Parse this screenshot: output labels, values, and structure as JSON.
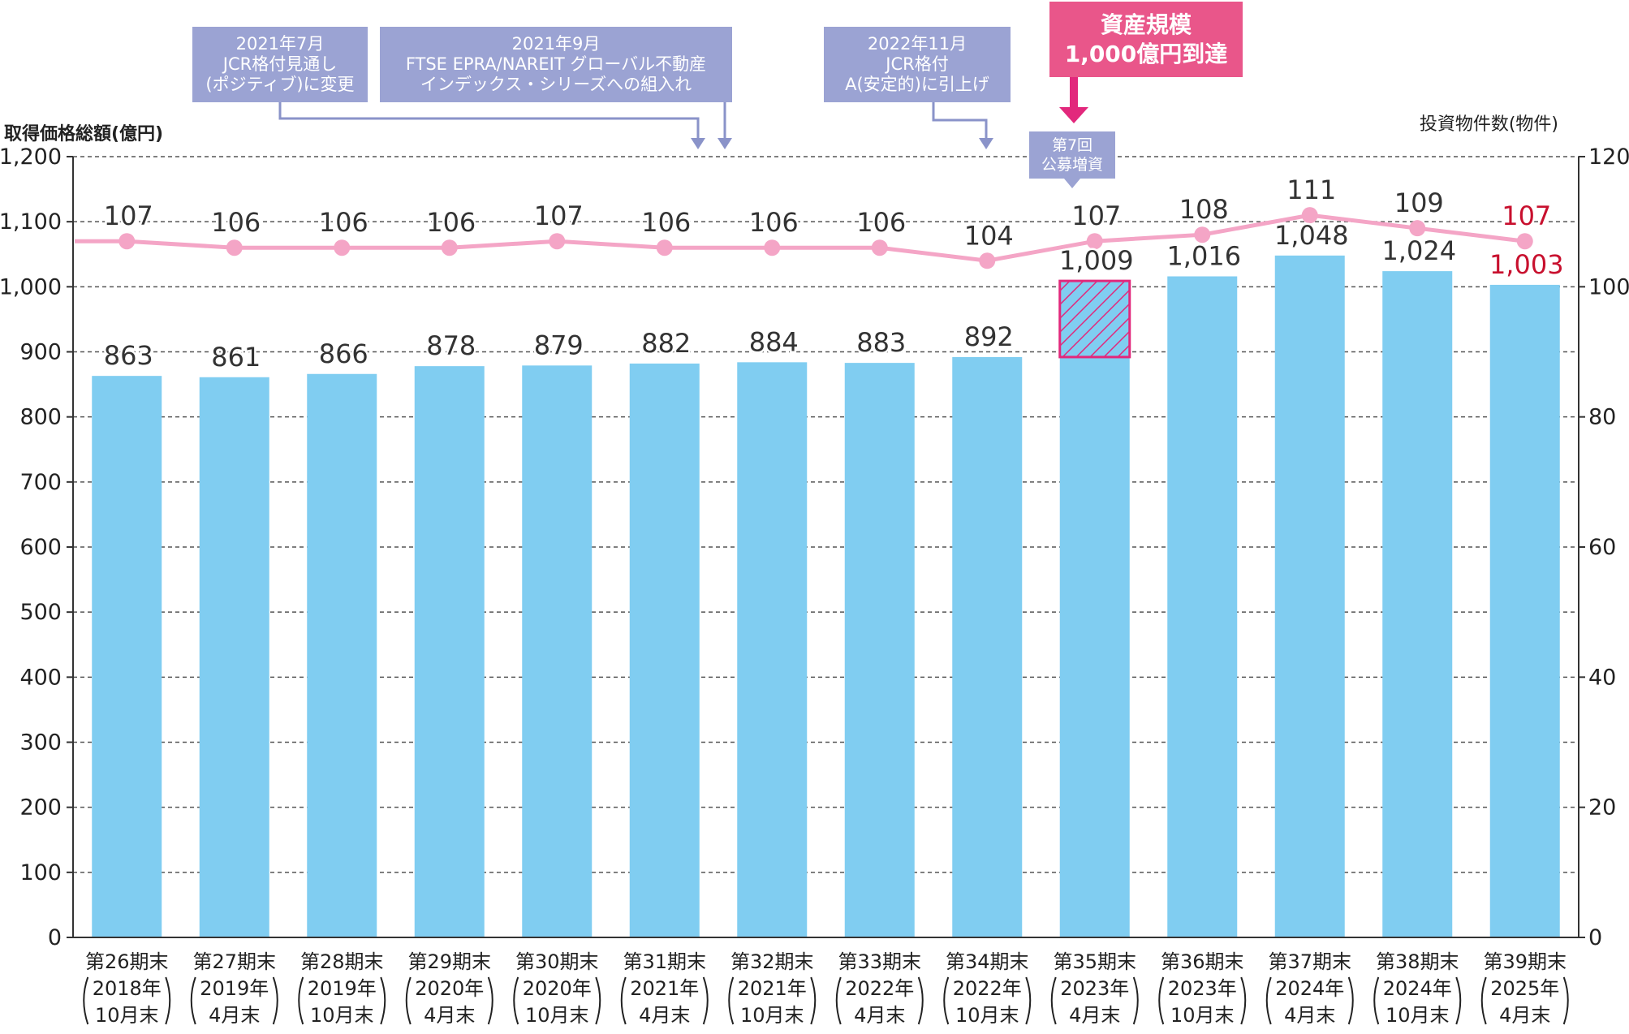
{
  "chart_data": {
    "type": "bar+line",
    "y_left_label": "取得価格総額(億円)",
    "y_right_label": "投資物件数(物件)",
    "y_left_range": [
      0,
      1200
    ],
    "y_left_ticks": [
      "0",
      "100",
      "200",
      "300",
      "400",
      "500",
      "600",
      "700",
      "800",
      "900",
      "1,000",
      "1,100",
      "1,200"
    ],
    "y_right_range": [
      0,
      120
    ],
    "y_right_ticks": [
      "0",
      "20",
      "40",
      "60",
      "80",
      "100",
      "120"
    ],
    "categories": [
      {
        "line1": "第26期末",
        "line2": "2018年",
        "line3": "10月末"
      },
      {
        "line1": "第27期末",
        "line2": "2019年",
        "line3": "4月末"
      },
      {
        "line1": "第28期末",
        "line2": "2019年",
        "line3": "10月末"
      },
      {
        "line1": "第29期末",
        "line2": "2020年",
        "line3": "4月末"
      },
      {
        "line1": "第30期末",
        "line2": "2020年",
        "line3": "10月末"
      },
      {
        "line1": "第31期末",
        "line2": "2021年",
        "line3": "4月末"
      },
      {
        "line1": "第32期末",
        "line2": "2021年",
        "line3": "10月末"
      },
      {
        "line1": "第33期末",
        "line2": "2022年",
        "line3": "4月末"
      },
      {
        "line1": "第34期末",
        "line2": "2022年",
        "line3": "10月末"
      },
      {
        "line1": "第35期末",
        "line2": "2023年",
        "line3": "4月末"
      },
      {
        "line1": "第36期末",
        "line2": "2023年",
        "line3": "10月末"
      },
      {
        "line1": "第37期末",
        "line2": "2024年",
        "line3": "4月末"
      },
      {
        "line1": "第38期末",
        "line2": "2024年",
        "line3": "10月末"
      },
      {
        "line1": "第39期末",
        "line2": "2025年",
        "line3": "4月末"
      }
    ],
    "series": [
      {
        "name": "取得価格総額(億円)",
        "type": "bar",
        "color": "#80cdf1",
        "values": [
          863,
          861,
          866,
          878,
          879,
          882,
          884,
          883,
          892,
          1009,
          1016,
          1048,
          1024,
          1003
        ],
        "labels": [
          "863",
          "861",
          "866",
          "878",
          "879",
          "882",
          "884",
          "883",
          "892",
          "1,009",
          "1,016",
          "1,048",
          "1,024",
          "1,003"
        ]
      },
      {
        "name": "投資物件数(物件)",
        "type": "line",
        "color": "#f4a5c6",
        "values": [
          107,
          106,
          106,
          106,
          107,
          106,
          106,
          106,
          104,
          107,
          108,
          111,
          109,
          107
        ],
        "labels": [
          "107",
          "106",
          "106",
          "106",
          "107",
          "106",
          "106",
          "106",
          "104",
          "107",
          "108",
          "111",
          "109",
          "107"
        ]
      }
    ],
    "highlight": {
      "index": 9,
      "from_value": 892,
      "to_value": 1009,
      "color": "#e2287c"
    },
    "label_colors": {
      "default": "#333333",
      "latest": "#c8102e"
    }
  },
  "annotations": [
    {
      "lines": [
        "2021年7月",
        "JCR格付見通し",
        "(ポジティブ)に変更"
      ]
    },
    {
      "lines": [
        "2021年9月",
        "FTSE EPRA/NAREIT グローバル不動産",
        "インデックス・シリーズへの組入れ"
      ]
    },
    {
      "lines": [
        "2022年11月",
        "JCR格付",
        "A(安定的)に引上げ"
      ]
    }
  ],
  "milestone": {
    "lines": [
      "資産規模",
      "1,000億円到達"
    ]
  },
  "offering": {
    "lines": [
      "第7回",
      "公募増資"
    ]
  }
}
